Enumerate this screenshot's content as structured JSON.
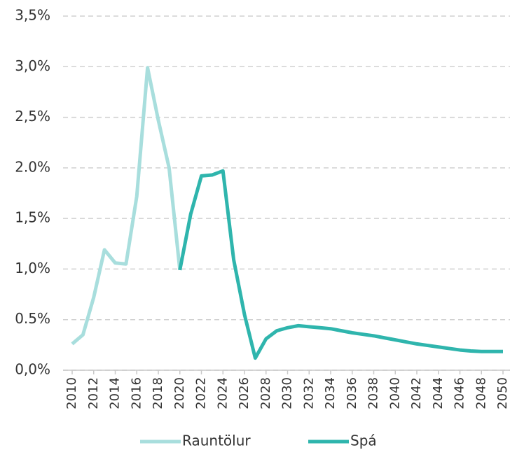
{
  "chart_data": {
    "type": "line",
    "x": [
      2010,
      2011,
      2012,
      2013,
      2014,
      2015,
      2016,
      2017,
      2018,
      2019,
      2020,
      2021,
      2022,
      2023,
      2024,
      2025,
      2026,
      2027,
      2028,
      2029,
      2030,
      2031,
      2032,
      2033,
      2034,
      2035,
      2036,
      2037,
      2038,
      2039,
      2040,
      2041,
      2042,
      2043,
      2044,
      2045,
      2046,
      2047,
      2048,
      2049,
      2050
    ],
    "series": [
      {
        "name": "Rauntölur",
        "color": "#a8dedd",
        "values": [
          0.26,
          0.35,
          0.72,
          1.19,
          1.06,
          1.05,
          1.72,
          2.99,
          2.47,
          2.0,
          0.99,
          null,
          null,
          null,
          null,
          null,
          null,
          null,
          null,
          null,
          null,
          null,
          null,
          null,
          null,
          null,
          null,
          null,
          null,
          null,
          null,
          null,
          null,
          null,
          null,
          null,
          null,
          null,
          null,
          null,
          null
        ]
      },
      {
        "name": "Spá",
        "color": "#2fb5ad",
        "values": [
          null,
          null,
          null,
          null,
          null,
          null,
          null,
          null,
          null,
          null,
          0.99,
          1.54,
          1.92,
          1.93,
          1.97,
          1.09,
          0.55,
          0.12,
          0.31,
          0.39,
          0.42,
          0.44,
          0.43,
          0.42,
          0.41,
          0.39,
          0.37,
          0.355,
          0.34,
          0.32,
          0.3,
          0.28,
          0.26,
          0.245,
          0.23,
          0.215,
          0.2,
          0.19,
          0.185,
          0.185,
          0.185
        ]
      }
    ],
    "xlim": [
      2010,
      2050
    ],
    "xticks": [
      2010,
      2012,
      2014,
      2016,
      2018,
      2020,
      2022,
      2024,
      2026,
      2028,
      2030,
      2032,
      2034,
      2036,
      2038,
      2040,
      2042,
      2044,
      2046,
      2048,
      2050
    ],
    "ylim": [
      0,
      3.5
    ],
    "yticks": [
      {
        "value": 0,
        "label": "0,0%"
      },
      {
        "value": 0.5,
        "label": "0.5%"
      },
      {
        "value": 1,
        "label": "1,0%"
      },
      {
        "value": 1.5,
        "label": "1,5%"
      },
      {
        "value": 2,
        "label": "2.0%"
      },
      {
        "value": 2.5,
        "label": "2,5%"
      },
      {
        "value": 3,
        "label": "3,0%"
      },
      {
        "value": 3.5,
        "label": "3,5%"
      }
    ],
    "grid": true,
    "legend": "bottom"
  }
}
